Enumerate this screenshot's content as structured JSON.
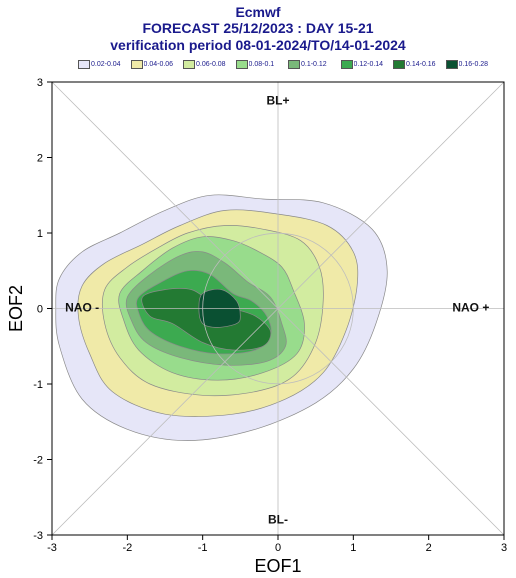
{
  "header": {
    "line1": "Ecmwf",
    "line2": "FORECAST 25/12/2023 : DAY 15-21",
    "line3": "verification period 08-01-2024/TO/14-01-2024"
  },
  "chart_data": {
    "type": "density-contour",
    "xlabel": "EOF1",
    "ylabel": "EOF2",
    "xlim": [
      -3,
      3
    ],
    "ylim": [
      -3,
      3
    ],
    "xticks": [
      "-3",
      "-2",
      "-1",
      "0",
      "1",
      "2",
      "3"
    ],
    "yticks": [
      "-3",
      "-2",
      "-1",
      "0",
      "1",
      "2",
      "3"
    ],
    "grid": "diagonals and unit circle",
    "regime_labels": {
      "top": "BL+",
      "bottom": "BL-",
      "left": "NAO -",
      "right": "NAO +"
    },
    "legend_position": "top",
    "levels": [
      {
        "label": "0.02-0.04",
        "color": "#e6e6f8"
      },
      {
        "label": "0.04-0.06",
        "color": "#f0eaa8"
      },
      {
        "label": "0.06-0.08",
        "color": "#d2eca0"
      },
      {
        "label": "0.08-0.1",
        "color": "#98dc8c"
      },
      {
        "label": "0.1-0.12",
        "color": "#7ab87a"
      },
      {
        "label": "0.12-0.14",
        "color": "#3caa50"
      },
      {
        "label": "0.14-0.16",
        "color": "#237a33"
      },
      {
        "label": "0.16-0.28",
        "color": "#0a5032"
      }
    ],
    "contours": [
      [
        [
          -2.9,
          0.4
        ],
        [
          -2.6,
          0.75
        ],
        [
          -2.1,
          1.0
        ],
        [
          -1.5,
          1.3
        ],
        [
          -0.9,
          1.5
        ],
        [
          -0.2,
          1.45
        ],
        [
          0.6,
          1.4
        ],
        [
          1.25,
          1.05
        ],
        [
          1.45,
          0.5
        ],
        [
          1.3,
          -0.2
        ],
        [
          1.0,
          -0.8
        ],
        [
          0.5,
          -1.25
        ],
        [
          -0.3,
          -1.6
        ],
        [
          -1.2,
          -1.75
        ],
        [
          -2.0,
          -1.6
        ],
        [
          -2.6,
          -1.2
        ],
        [
          -2.9,
          -0.5
        ],
        [
          -2.95,
          0.0
        ]
      ],
      [
        [
          -2.6,
          0.3
        ],
        [
          -2.3,
          0.6
        ],
        [
          -1.8,
          0.85
        ],
        [
          -1.3,
          1.1
        ],
        [
          -0.7,
          1.3
        ],
        [
          0.0,
          1.25
        ],
        [
          0.65,
          1.1
        ],
        [
          1.0,
          0.75
        ],
        [
          1.05,
          0.3
        ],
        [
          0.9,
          -0.3
        ],
        [
          0.6,
          -0.85
        ],
        [
          0.1,
          -1.2
        ],
        [
          -0.6,
          -1.4
        ],
        [
          -1.5,
          -1.4
        ],
        [
          -2.2,
          -1.1
        ],
        [
          -2.5,
          -0.6
        ],
        [
          -2.65,
          -0.1
        ]
      ],
      [
        [
          -2.3,
          0.25
        ],
        [
          -2.0,
          0.55
        ],
        [
          -1.6,
          0.8
        ],
        [
          -1.2,
          1.0
        ],
        [
          -0.7,
          1.1
        ],
        [
          -0.2,
          1.05
        ],
        [
          0.3,
          0.9
        ],
        [
          0.55,
          0.55
        ],
        [
          0.6,
          0.1
        ],
        [
          0.5,
          -0.45
        ],
        [
          0.2,
          -0.9
        ],
        [
          -0.3,
          -1.1
        ],
        [
          -1.0,
          -1.15
        ],
        [
          -1.7,
          -1.0
        ],
        [
          -2.1,
          -0.65
        ],
        [
          -2.3,
          -0.2
        ]
      ],
      [
        [
          -2.1,
          0.2
        ],
        [
          -1.8,
          0.5
        ],
        [
          -1.4,
          0.8
        ],
        [
          -1.0,
          0.95
        ],
        [
          -0.6,
          0.9
        ],
        [
          -0.25,
          0.75
        ],
        [
          0.05,
          0.55
        ],
        [
          0.2,
          0.25
        ],
        [
          0.35,
          -0.2
        ],
        [
          0.25,
          -0.6
        ],
        [
          -0.2,
          -0.85
        ],
        [
          -0.8,
          -0.95
        ],
        [
          -1.4,
          -0.85
        ],
        [
          -1.85,
          -0.55
        ],
        [
          -2.05,
          -0.15
        ]
      ],
      [
        [
          -2.0,
          0.15
        ],
        [
          -1.7,
          0.45
        ],
        [
          -1.3,
          0.7
        ],
        [
          -1.0,
          0.75
        ],
        [
          -0.7,
          0.6
        ],
        [
          -0.4,
          0.35
        ],
        [
          -0.1,
          0.15
        ],
        [
          0.05,
          -0.2
        ],
        [
          0.1,
          -0.5
        ],
        [
          -0.15,
          -0.7
        ],
        [
          -0.7,
          -0.75
        ],
        [
          -1.3,
          -0.65
        ],
        [
          -1.75,
          -0.45
        ],
        [
          -1.95,
          -0.15
        ]
      ],
      [
        [
          -1.85,
          0.15
        ],
        [
          -1.55,
          0.35
        ],
        [
          -1.2,
          0.5
        ],
        [
          -0.9,
          0.45
        ],
        [
          -0.6,
          0.2
        ],
        [
          -0.35,
          0.1
        ],
        [
          -0.15,
          -0.1
        ],
        [
          -0.1,
          -0.35
        ],
        [
          -0.3,
          -0.55
        ],
        [
          -0.8,
          -0.6
        ],
        [
          -1.3,
          -0.5
        ],
        [
          -1.7,
          -0.3
        ],
        [
          -1.85,
          -0.05
        ]
      ],
      [
        [
          -1.8,
          0.15
        ],
        [
          -1.5,
          0.25
        ],
        [
          -1.15,
          0.25
        ],
        [
          -0.9,
          0.1
        ],
        [
          -0.6,
          0.0
        ],
        [
          -0.3,
          -0.1
        ],
        [
          -0.1,
          -0.3
        ],
        [
          -0.2,
          -0.5
        ],
        [
          -0.6,
          -0.55
        ],
        [
          -1.0,
          -0.45
        ],
        [
          -1.4,
          -0.2
        ],
        [
          -1.7,
          -0.1
        ]
      ],
      [
        [
          -1.0,
          0.2
        ],
        [
          -0.75,
          0.25
        ],
        [
          -0.55,
          0.1
        ],
        [
          -0.5,
          -0.1
        ],
        [
          -0.55,
          -0.2
        ],
        [
          -0.8,
          -0.25
        ],
        [
          -1.0,
          -0.2
        ],
        [
          -1.05,
          0.0
        ]
      ]
    ]
  }
}
